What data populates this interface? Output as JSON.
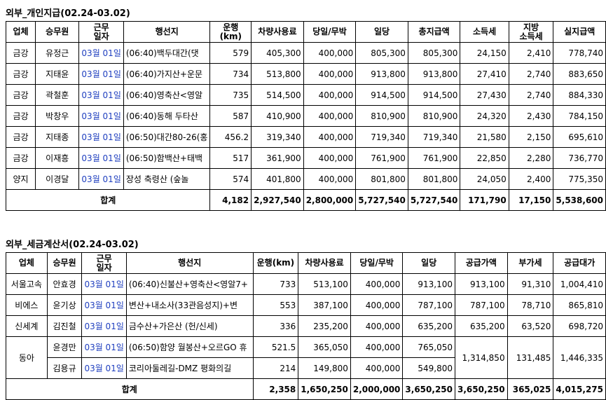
{
  "section1": {
    "title": "외부_개인지급(02.24-03.02)",
    "headers": [
      "업체",
      "승무원",
      "근무\n일자",
      "행선지",
      "운행\n(km)",
      "차량사용료",
      "당일/무박",
      "일당",
      "총지급액",
      "소득세",
      "지방\n소득세",
      "실지급액"
    ],
    "rows": [
      {
        "company": "금강",
        "driver": "유정근",
        "date": "03월 01일",
        "route": "(06:40)백두대간(댓",
        "km": "579",
        "vehicle_fee": "405,300",
        "day_trip": "400,000",
        "daily": "805,300",
        "total": "805,300",
        "income_tax": "24,150",
        "local_tax": "2,410",
        "net": "778,740"
      },
      {
        "company": "금강",
        "driver": "지태윤",
        "date": "03월 01일",
        "route": "(06:40)가지산+운문",
        "km": "734",
        "vehicle_fee": "513,800",
        "day_trip": "400,000",
        "daily": "913,800",
        "total": "913,800",
        "income_tax": "27,410",
        "local_tax": "2,740",
        "net": "883,650"
      },
      {
        "company": "금강",
        "driver": "곽철훈",
        "date": "03월 01일",
        "route": "(06:40)영축산<영알",
        "km": "735",
        "vehicle_fee": "514,500",
        "day_trip": "400,000",
        "daily": "914,500",
        "total": "914,500",
        "income_tax": "27,430",
        "local_tax": "2,740",
        "net": "884,330"
      },
      {
        "company": "금강",
        "driver": "박창우",
        "date": "03월 01일",
        "route": "(06:40)동해 두타산",
        "km": "587",
        "vehicle_fee": "410,900",
        "day_trip": "400,000",
        "daily": "810,900",
        "total": "810,900",
        "income_tax": "24,320",
        "local_tax": "2,430",
        "net": "784,150"
      },
      {
        "company": "금강",
        "driver": "지태종",
        "date": "03월 01일",
        "route": "(06:50)대간80-26(홍",
        "km": "456.2",
        "vehicle_fee": "319,340",
        "day_trip": "400,000",
        "daily": "719,340",
        "total": "719,340",
        "income_tax": "21,580",
        "local_tax": "2,150",
        "net": "695,610"
      },
      {
        "company": "금강",
        "driver": "이재흥",
        "date": "03월 01일",
        "route": "(06:50)함백산+태백",
        "km": "517",
        "vehicle_fee": "361,900",
        "day_trip": "400,000",
        "daily": "761,900",
        "total": "761,900",
        "income_tax": "22,850",
        "local_tax": "2,280",
        "net": "736,770"
      },
      {
        "company": "양지",
        "driver": "이경달",
        "date": "03월 01일",
        "route": "장성 축령산 (숲놀",
        "km": "574",
        "vehicle_fee": "401,800",
        "day_trip": "400,000",
        "daily": "801,800",
        "total": "801,800",
        "income_tax": "24,050",
        "local_tax": "2,400",
        "net": "775,350"
      }
    ],
    "total": {
      "label": "합계",
      "km": "4,182",
      "vehicle_fee": "2,927,540",
      "day_trip": "2,800,000",
      "daily": "5,727,540",
      "total": "5,727,540",
      "income_tax": "171,790",
      "local_tax": "17,150",
      "net": "5,538,600"
    }
  },
  "section2": {
    "title": "외부_세금계산서(02.24-03.02)",
    "headers": [
      "업체",
      "승무원",
      "근무\n일자",
      "행선지",
      "운행(km)",
      "차량사용료",
      "당일/무박",
      "일당",
      "공급가액",
      "부가세",
      "공급대가"
    ],
    "rows": [
      {
        "company": "서울고속",
        "driver": "안효경",
        "date": "03월 01일",
        "route": "(06:40)신불산+영축산<영알7+",
        "km": "733",
        "vehicle_fee": "513,100",
        "day_trip": "400,000",
        "daily": "913,100",
        "supply": "913,100",
        "vat": "91,310",
        "supply_total": "1,004,410"
      },
      {
        "company": "비에스",
        "driver": "윤기상",
        "date": "03월 01일",
        "route": "변산+내소사(33관음성지)+변",
        "km": "553",
        "vehicle_fee": "387,100",
        "day_trip": "400,000",
        "daily": "787,100",
        "supply": "787,100",
        "vat": "78,710",
        "supply_total": "865,810"
      },
      {
        "company": "신세계",
        "driver": "김진철",
        "date": "03월 01일",
        "route": "금수산+가은산 (헌/신세)",
        "km": "336",
        "vehicle_fee": "235,200",
        "day_trip": "400,000",
        "daily": "635,200",
        "supply": "635,200",
        "vat": "63,520",
        "supply_total": "698,720"
      }
    ],
    "group": {
      "company": "동아",
      "rows": [
        {
          "driver": "윤경만",
          "date": "03월 01일",
          "route": "(06:50)함양 월봉산+오르GO 휴",
          "km": "521.5",
          "vehicle_fee": "365,050",
          "day_trip": "400,000",
          "daily": "765,050"
        },
        {
          "driver": "김용규",
          "date": "03월 01일",
          "route": "코리아둘레길-DMZ 평화의길",
          "km": "214",
          "vehicle_fee": "149,800",
          "day_trip": "400,000",
          "daily": "549,800"
        }
      ],
      "supply": "1,314,850",
      "vat": "131,485",
      "supply_total": "1,446,335"
    },
    "total": {
      "label": "합계",
      "km": "2,358",
      "vehicle_fee": "1,650,250",
      "day_trip": "2,000,000",
      "daily": "3,650,250",
      "supply": "3,650,250",
      "vat": "365,025",
      "supply_total": "4,015,275"
    }
  }
}
